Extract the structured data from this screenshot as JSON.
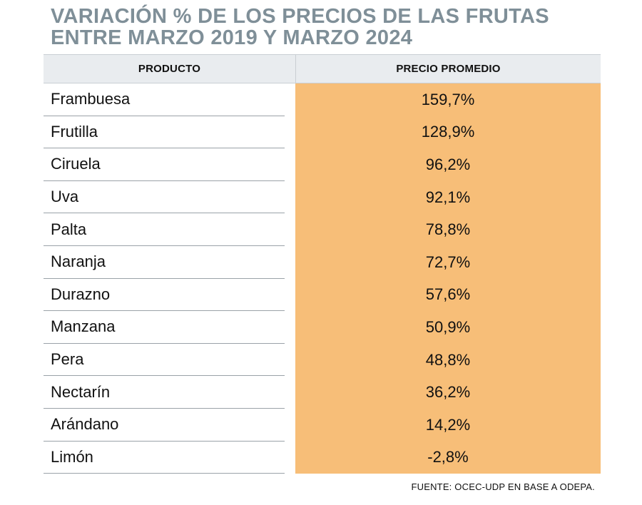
{
  "title_line1": "VARIACIÓN % DE LOS PRECIOS DE LAS FRUTAS",
  "title_line2": "ENTRE MARZO 2019 Y MARZO 2024",
  "source": "FUENTE: OCEC-UDP EN BASE A ODEPA.",
  "colors": {
    "title": "#7f8f98",
    "highlight": "#f7be78",
    "header_bg": "#e9ecef"
  },
  "chart_data": {
    "type": "table",
    "columns": [
      "PRODUCTO",
      "PRECIO PROMEDIO"
    ],
    "rows": [
      {
        "product": "Frambuesa",
        "value": "159,7%"
      },
      {
        "product": "Frutilla",
        "value": "128,9%"
      },
      {
        "product": "Ciruela",
        "value": "96,2%"
      },
      {
        "product": "Uva",
        "value": "92,1%"
      },
      {
        "product": "Palta",
        "value": "78,8%"
      },
      {
        "product": "Naranja",
        "value": "72,7%"
      },
      {
        "product": "Durazno",
        "value": "57,6%"
      },
      {
        "product": "Manzana",
        "value": "50,9%"
      },
      {
        "product": "Pera",
        "value": "48,8%"
      },
      {
        "product": "Nectarín",
        "value": "36,2%"
      },
      {
        "product": "Arándano",
        "value": "14,2%"
      },
      {
        "product": "Limón",
        "value": "-2,8%"
      }
    ]
  }
}
